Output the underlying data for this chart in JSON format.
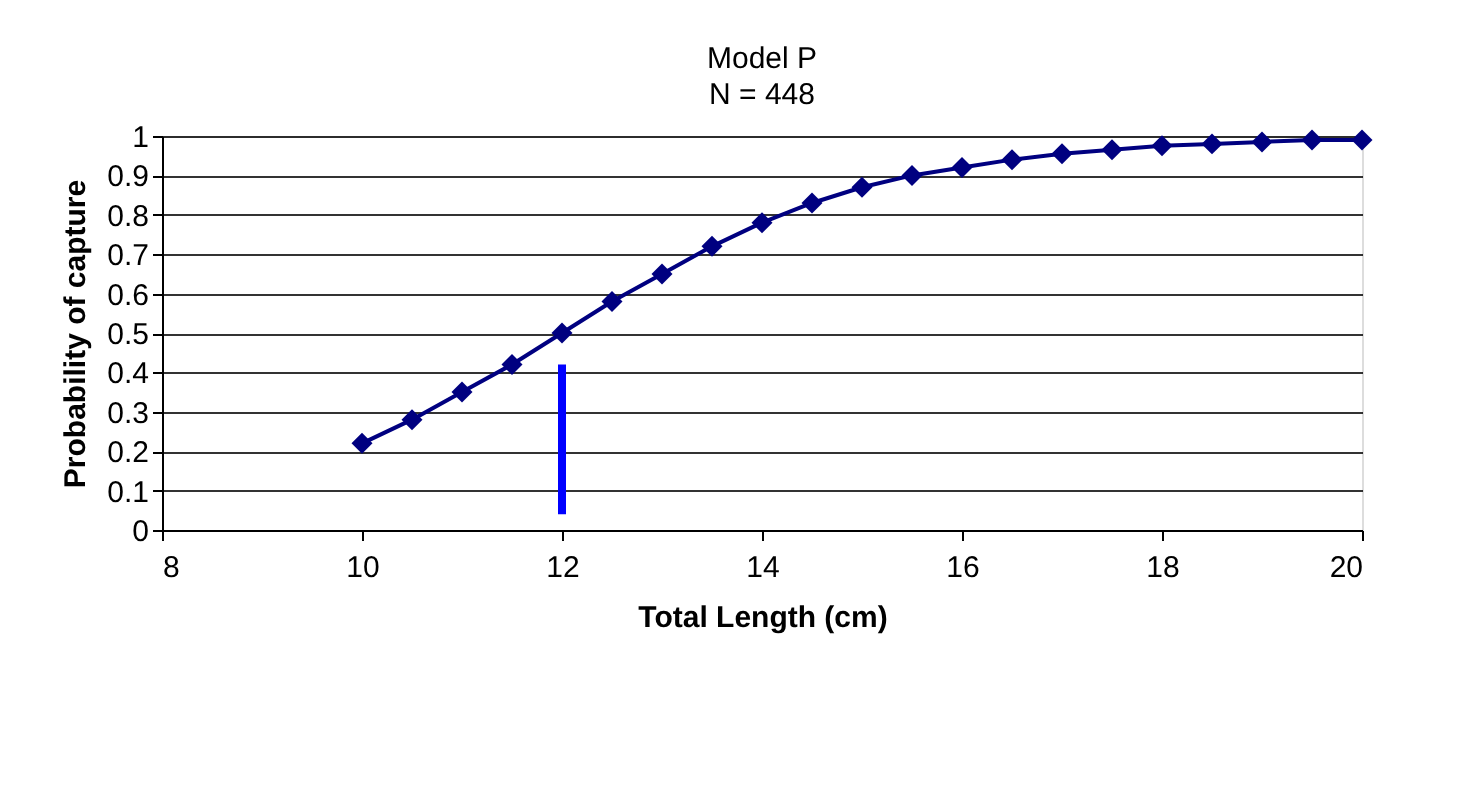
{
  "chart_data": {
    "type": "line",
    "title": "Model P",
    "subtitle": "N = 448",
    "xlabel": "Total Length (cm)",
    "ylabel": "Probability of capture",
    "x": [
      10,
      10.5,
      11,
      11.5,
      12,
      12.5,
      13,
      13.5,
      14,
      14.5,
      15,
      15.5,
      16,
      16.5,
      17,
      17.5,
      18,
      18.5,
      19,
      19.5,
      20
    ],
    "series": [
      {
        "color": "#000080",
        "marker": "diamond",
        "values": [
          0.22,
          0.28,
          0.35,
          0.42,
          0.5,
          0.58,
          0.65,
          0.72,
          0.78,
          0.83,
          0.87,
          0.9,
          0.92,
          0.94,
          0.955,
          0.965,
          0.975,
          0.98,
          0.985,
          0.99,
          0.99
        ]
      },
      {
        "color": "#0000ff",
        "marker": "none",
        "x": [
          12,
          12
        ],
        "values": [
          0.04,
          0.42
        ]
      }
    ],
    "xlim": [
      8,
      20
    ],
    "xticks": [
      8,
      10,
      12,
      14,
      16,
      18,
      20
    ],
    "ylim": [
      0,
      1
    ],
    "yticks": [
      0,
      0.1,
      0.2,
      0.3,
      0.4,
      0.5,
      0.6,
      0.7,
      0.8,
      0.9,
      1
    ],
    "grid": "y"
  }
}
